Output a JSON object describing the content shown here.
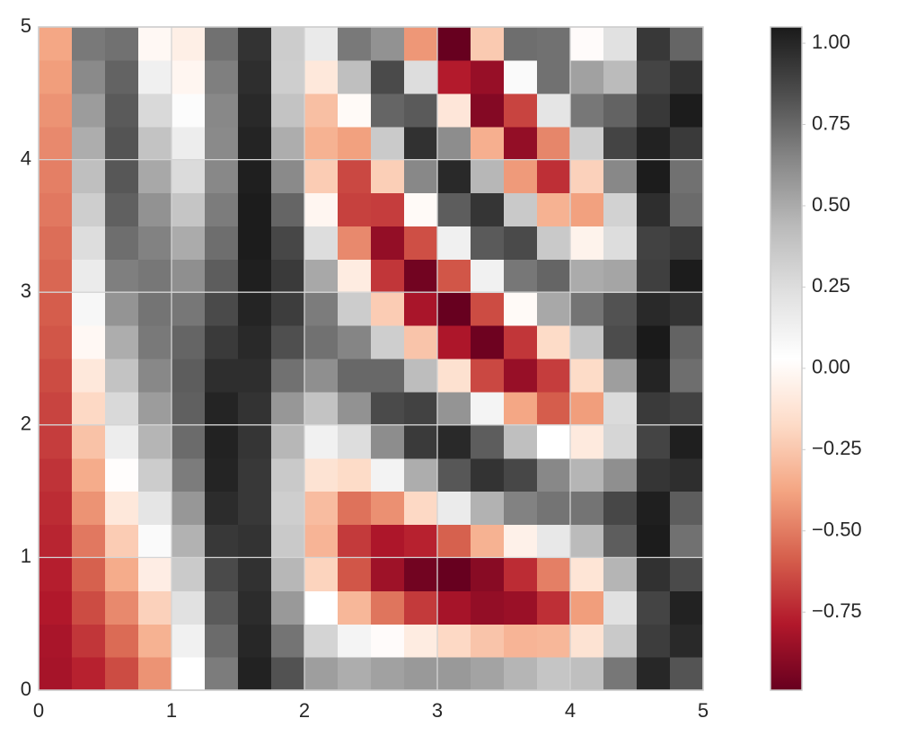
{
  "chart_data": {
    "type": "heatmap",
    "xlim": [
      0,
      5
    ],
    "ylim": [
      0,
      5
    ],
    "xticks": [
      0,
      1,
      2,
      3,
      4,
      5
    ],
    "yticks": [
      0,
      1,
      2,
      3,
      4,
      5
    ],
    "grid": true,
    "clim": [
      -0.99,
      1.05
    ],
    "colormap": [
      "#67001f",
      "#b2182b",
      "#d6604d",
      "#f4a582",
      "#fddbc7",
      "#ffffff",
      "#e0e0e0",
      "#bababa",
      "#878787",
      "#4d4d4d",
      "#1a1a1a"
    ],
    "colorbar_ticks": [
      {
        "value": 1.0,
        "label": "1.00"
      },
      {
        "value": 0.75,
        "label": "0.75"
      },
      {
        "value": 0.5,
        "label": "0.50"
      },
      {
        "value": 0.25,
        "label": "0.25"
      },
      {
        "value": 0.0,
        "label": "0.00"
      },
      {
        "value": -0.25,
        "label": "−0.25"
      },
      {
        "value": -0.5,
        "label": "−0.50"
      },
      {
        "value": -0.75,
        "label": "−0.75"
      }
    ],
    "z": [
      [
        -0.82,
        -0.81,
        -0.79,
        -0.77,
        -0.75,
        -0.73,
        -0.71,
        -0.68,
        -0.66,
        -0.64,
        -0.61,
        -0.59,
        -0.56,
        -0.54,
        -0.51,
        -0.49,
        -0.46,
        -0.43,
        -0.4,
        -0.37
      ],
      [
        -0.76,
        -0.7,
        -0.64,
        -0.58,
        -0.51,
        -0.43,
        -0.35,
        -0.27,
        -0.18,
        -0.1,
        -0.01,
        0.08,
        0.16,
        0.25,
        0.33,
        0.41,
        0.49,
        0.56,
        0.63,
        0.69
      ],
      [
        -0.64,
        -0.55,
        -0.46,
        -0.35,
        -0.23,
        -0.1,
        0.02,
        0.15,
        0.27,
        0.39,
        0.49,
        0.59,
        0.67,
        0.73,
        0.78,
        0.81,
        0.82,
        0.8,
        0.77,
        0.72
      ],
      [
        -0.43,
        -0.33,
        -0.21,
        -0.07,
        0.06,
        0.2,
        0.34,
        0.46,
        0.56,
        0.64,
        0.69,
        0.71,
        0.7,
        0.66,
        0.6,
        0.51,
        0.39,
        0.27,
        0.13,
        -0.01
      ],
      [
        0.03,
        0.12,
        0.23,
        0.35,
        0.47,
        0.58,
        0.68,
        0.74,
        0.78,
        0.79,
        0.76,
        0.7,
        0.61,
        0.5,
        0.38,
        0.26,
        0.15,
        0.05,
        -0.02,
        -0.06
      ],
      [
        0.68,
        0.74,
        0.8,
        0.86,
        0.93,
        0.98,
        1.01,
        1.02,
        1.01,
        0.97,
        0.92,
        0.86,
        0.79,
        0.73,
        0.68,
        0.64,
        0.63,
        0.64,
        0.67,
        0.72
      ],
      [
        1.02,
        1.0,
        0.98,
        0.96,
        0.95,
        0.93,
        0.93,
        0.94,
        0.95,
        0.97,
        0.99,
        1.01,
        1.03,
        1.04,
        1.04,
        1.03,
        1.01,
        0.99,
        0.97,
        0.95
      ],
      [
        0.83,
        0.71,
        0.57,
        0.45,
        0.36,
        0.33,
        0.36,
        0.45,
        0.58,
        0.72,
        0.84,
        0.91,
        0.92,
        0.87,
        0.76,
        0.63,
        0.49,
        0.39,
        0.33,
        0.34
      ],
      [
        0.55,
        0.3,
        0.03,
        -0.2,
        -0.32,
        -0.29,
        -0.13,
        0.12,
        0.39,
        0.61,
        0.72,
        0.68,
        0.51,
        0.25,
        -0.02,
        -0.23,
        -0.33,
        -0.28,
        -0.1,
        0.17
      ],
      [
        0.49,
        0.1,
        -0.31,
        -0.61,
        -0.69,
        -0.53,
        -0.17,
        0.25,
        0.6,
        0.75,
        0.65,
        0.34,
        -0.08,
        -0.46,
        -0.67,
        -0.65,
        -0.39,
        0.0,
        0.41,
        0.69
      ],
      [
        0.54,
        0.01,
        -0.52,
        -0.84,
        -0.8,
        -0.44,
        0.11,
        0.62,
        0.86,
        0.75,
        0.33,
        -0.23,
        -0.7,
        -0.87,
        -0.68,
        -0.22,
        0.35,
        0.76,
        0.86,
        0.6
      ],
      [
        0.57,
        -0.08,
        -0.69,
        -0.96,
        -0.76,
        -0.18,
        0.49,
        0.92,
        0.89,
        0.42,
        -0.26,
        -0.81,
        -0.96,
        -0.63,
        0.0,
        0.64,
        0.96,
        0.8,
        0.25,
        -0.42
      ],
      [
        0.57,
        -0.18,
        -0.82,
        -0.99,
        -0.58,
        0.16,
        0.81,
        0.99,
        0.59,
        -0.14,
        -0.8,
        -0.99,
        -0.61,
        0.13,
        0.79,
        0.99,
        0.62,
        -0.11,
        -0.78,
        -0.99
      ],
      [
        0.53,
        -0.26,
        -0.87,
        -0.9,
        -0.33,
        0.47,
        0.95,
        0.79,
        0.1,
        -0.65,
        -0.97,
        -0.64,
        0.12,
        0.8,
        0.94,
        0.45,
        -0.34,
        -0.91,
        -0.86,
        -0.24
      ],
      [
        0.46,
        -0.32,
        -0.85,
        -0.73,
        -0.05,
        0.66,
        0.87,
        0.41,
        -0.37,
        -0.86,
        -0.7,
        0.0,
        0.7,
        0.86,
        0.36,
        -0.41,
        -0.87,
        -0.66,
        0.06,
        0.73
      ],
      [
        0.38,
        -0.31,
        -0.72,
        -0.49,
        0.18,
        0.71,
        0.64,
        0.03,
        -0.59,
        -0.68,
        -0.17,
        0.51,
        0.76,
        0.36,
        -0.33,
        -0.72,
        -0.47,
        0.2,
        0.72,
        0.72
      ],
      [
        0.41,
        -0.13,
        -0.4,
        -0.12,
        0.43,
        0.71,
        0.46,
        -0.09,
        -0.4,
        -0.17,
        0.38,
        0.71,
        0.5,
        -0.04,
        -0.39,
        -0.21,
        0.33,
        0.7,
        0.54,
        0.01
      ],
      [
        0.7,
        0.36,
        0.23,
        0.46,
        0.79,
        0.87,
        0.61,
        0.29,
        0.26,
        0.55,
        0.85,
        0.83,
        0.52,
        0.25,
        0.31,
        0.64,
        0.88,
        0.77,
        0.43,
        0.23
      ],
      [
        1.0,
        0.91,
        0.88,
        0.96,
        1.04,
        1.03,
        0.94,
        0.88,
        0.92,
        1.01,
        1.05,
        0.99,
        0.9,
        0.89,
        0.97,
        1.04,
        1.02,
        0.93,
        0.88,
        0.93
      ],
      [
        0.82,
        0.99,
        1.02,
        0.86,
        0.72,
        0.79,
        0.97,
        1.03,
        0.89,
        0.73,
        0.77,
        0.95,
        1.04,
        0.92,
        0.74,
        0.72,
        0.92,
        1.04,
        0.95,
        0.76
      ]
    ]
  }
}
